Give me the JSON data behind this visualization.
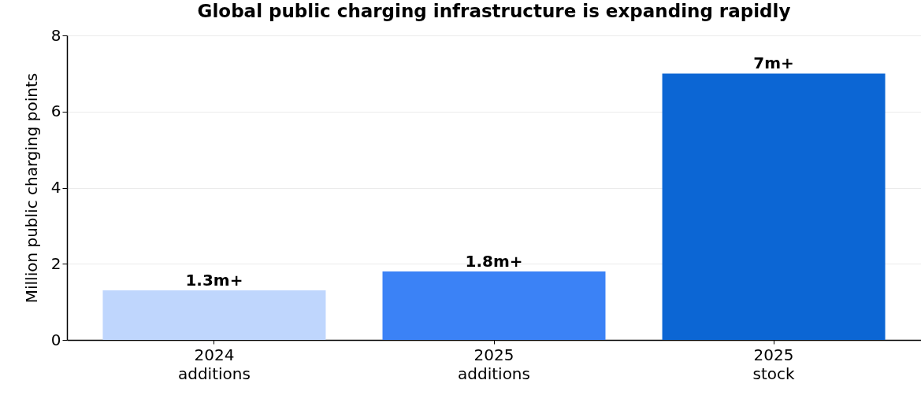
{
  "chart_data": {
    "type": "bar",
    "title": "Global public charging infrastructure is expanding rapidly",
    "ylabel": "Million public charging points",
    "categories": [
      "2024\nadditions",
      "2025\nadditions",
      "2025\nstock"
    ],
    "values": [
      1.3,
      1.8,
      7
    ],
    "colors": [
      "#bfd6fd",
      "#3b82f6",
      "#0c66d4"
    ],
    "value_labels": [
      "1.3m+",
      "1.8m+",
      "7m+"
    ],
    "ylim": [
      0,
      8
    ],
    "yticks": [
      0,
      2,
      4,
      6,
      8
    ],
    "grid": "y"
  }
}
